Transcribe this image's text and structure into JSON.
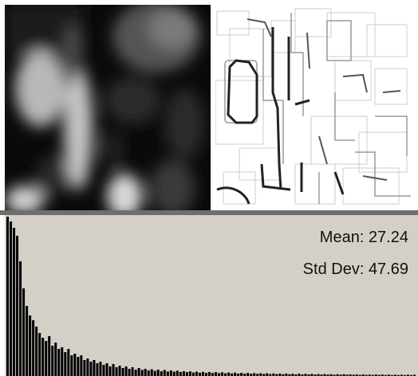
{
  "viewports": {
    "top_left": {
      "content": "grayscale-image-blurred"
    },
    "top_right": {
      "content": "edge-detected-image"
    }
  },
  "histogram": {
    "colors": {
      "panel_bg": "#d4d0c8",
      "bars": "#000000"
    },
    "stats": {
      "mean_label": "Mean:",
      "mean_value": "27.24",
      "std_label": "Std Dev:",
      "std_value": "47.69"
    }
  },
  "chart_data": {
    "type": "bar",
    "bin_count": 128,
    "values": [
      1.0,
      0.97,
      0.93,
      0.88,
      0.72,
      0.55,
      0.44,
      0.38,
      0.35,
      0.31,
      0.27,
      0.24,
      0.22,
      0.25,
      0.19,
      0.21,
      0.17,
      0.18,
      0.15,
      0.17,
      0.13,
      0.14,
      0.12,
      0.13,
      0.1,
      0.11,
      0.09,
      0.1,
      0.08,
      0.09,
      0.07,
      0.08,
      0.06,
      0.075,
      0.055,
      0.065,
      0.05,
      0.06,
      0.045,
      0.055,
      0.04,
      0.05,
      0.038,
      0.045,
      0.035,
      0.042,
      0.032,
      0.04,
      0.03,
      0.038,
      0.028,
      0.035,
      0.027,
      0.033,
      0.025,
      0.03,
      0.024,
      0.029,
      0.022,
      0.027,
      0.021,
      0.026,
      0.02,
      0.025,
      0.019,
      0.024,
      0.018,
      0.023,
      0.017,
      0.022,
      0.016,
      0.021,
      0.015,
      0.02,
      0.015,
      0.019,
      0.014,
      0.018,
      0.014,
      0.017,
      0.013,
      0.017,
      0.012,
      0.016,
      0.012,
      0.015,
      0.011,
      0.015,
      0.011,
      0.014,
      0.01,
      0.014,
      0.01,
      0.013,
      0.01,
      0.013,
      0.009,
      0.012,
      0.009,
      0.012,
      0.009,
      0.011,
      0.008,
      0.011,
      0.008,
      0.011,
      0.008,
      0.01,
      0.008,
      0.01,
      0.007,
      0.01,
      0.007,
      0.009,
      0.007,
      0.009,
      0.007,
      0.009,
      0.006,
      0.009,
      0.006,
      0.008,
      0.006,
      0.008,
      0.006,
      0.008,
      0.006,
      0.008
    ],
    "ylim": [
      0,
      1
    ]
  }
}
